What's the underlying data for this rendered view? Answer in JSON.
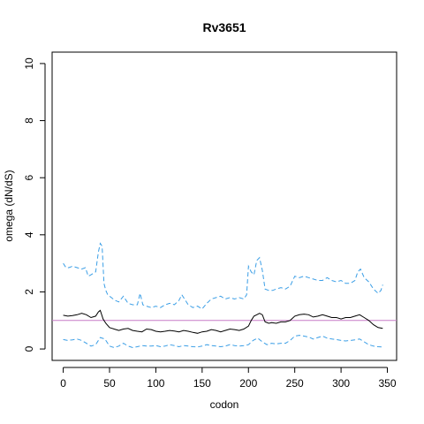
{
  "chart_data": {
    "type": "line",
    "title": "Rv3651",
    "xlabel": "codon",
    "ylabel": "omega (dN/dS)",
    "xlim": [
      -12,
      360
    ],
    "ylim": [
      -0.4,
      10.4
    ],
    "x_ticks": [
      0,
      50,
      100,
      150,
      200,
      250,
      300,
      350
    ],
    "y_ticks": [
      0,
      2,
      4,
      6,
      8,
      10
    ],
    "grid": false,
    "reference_line": {
      "y": 1,
      "color": "#c77cc7"
    },
    "series": [
      {
        "color": "#000000",
        "style": "solid",
        "x": [
          0,
          5,
          10,
          15,
          20,
          25,
          30,
          35,
          38,
          40,
          43,
          46,
          50,
          55,
          60,
          65,
          70,
          75,
          80,
          85,
          90,
          95,
          100,
          105,
          110,
          115,
          120,
          125,
          130,
          135,
          140,
          145,
          150,
          155,
          160,
          165,
          170,
          175,
          180,
          185,
          190,
          195,
          200,
          203,
          206,
          209,
          212,
          215,
          218,
          222,
          225,
          230,
          235,
          240,
          245,
          250,
          255,
          260,
          265,
          270,
          275,
          280,
          285,
          290,
          295,
          300,
          305,
          310,
          315,
          320,
          325,
          330,
          335,
          340,
          345
        ],
        "y": [
          1.18,
          1.15,
          1.17,
          1.2,
          1.25,
          1.2,
          1.1,
          1.15,
          1.3,
          1.35,
          1.05,
          0.9,
          0.75,
          0.7,
          0.65,
          0.7,
          0.72,
          0.65,
          0.62,
          0.6,
          0.7,
          0.68,
          0.62,
          0.6,
          0.62,
          0.65,
          0.63,
          0.6,
          0.65,
          0.62,
          0.58,
          0.55,
          0.6,
          0.62,
          0.68,
          0.65,
          0.6,
          0.65,
          0.7,
          0.68,
          0.65,
          0.7,
          0.8,
          1.0,
          1.15,
          1.2,
          1.25,
          1.2,
          0.95,
          0.9,
          0.92,
          0.9,
          0.95,
          0.95,
          1.0,
          1.15,
          1.2,
          1.22,
          1.2,
          1.12,
          1.15,
          1.2,
          1.15,
          1.1,
          1.1,
          1.05,
          1.1,
          1.1,
          1.15,
          1.2,
          1.1,
          1.0,
          0.85,
          0.75,
          0.72
        ]
      },
      {
        "color": "#3a9ee6",
        "style": "dashed",
        "x": [
          0,
          3,
          6,
          10,
          15,
          20,
          24,
          27,
          30,
          35,
          38,
          40,
          42,
          44,
          46,
          48,
          52,
          56,
          60,
          65,
          70,
          75,
          80,
          83,
          86,
          90,
          95,
          100,
          105,
          110,
          115,
          120,
          125,
          128,
          131,
          135,
          140,
          145,
          150,
          155,
          160,
          165,
          170,
          175,
          180,
          185,
          190,
          195,
          198,
          200,
          203,
          206,
          209,
          212,
          215,
          218,
          222,
          226,
          230,
          235,
          240,
          245,
          250,
          255,
          260,
          265,
          270,
          275,
          280,
          285,
          290,
          295,
          300,
          305,
          310,
          315,
          318,
          321,
          325,
          330,
          335,
          340,
          343,
          345
        ],
        "y": [
          3.0,
          2.85,
          2.85,
          2.9,
          2.85,
          2.8,
          2.85,
          2.55,
          2.6,
          2.7,
          3.4,
          3.7,
          3.6,
          2.3,
          2.05,
          1.9,
          1.8,
          1.7,
          1.65,
          1.85,
          1.6,
          1.55,
          1.55,
          1.95,
          1.55,
          1.5,
          1.45,
          1.5,
          1.45,
          1.55,
          1.6,
          1.55,
          1.7,
          1.9,
          1.75,
          1.55,
          1.45,
          1.5,
          1.4,
          1.6,
          1.75,
          1.8,
          1.85,
          1.75,
          1.8,
          1.75,
          1.8,
          1.75,
          1.9,
          2.9,
          2.7,
          2.6,
          3.1,
          3.2,
          2.75,
          2.1,
          2.05,
          2.05,
          2.1,
          2.15,
          2.1,
          2.2,
          2.55,
          2.5,
          2.55,
          2.5,
          2.45,
          2.4,
          2.4,
          2.5,
          2.4,
          2.35,
          2.4,
          2.3,
          2.3,
          2.4,
          2.7,
          2.8,
          2.5,
          2.35,
          2.1,
          1.95,
          2.05,
          2.25
        ]
      },
      {
        "color": "#3a9ee6",
        "style": "dashed",
        "x": [
          0,
          5,
          10,
          15,
          20,
          25,
          30,
          35,
          40,
          45,
          50,
          55,
          60,
          65,
          70,
          75,
          80,
          85,
          90,
          95,
          100,
          105,
          110,
          115,
          120,
          125,
          130,
          135,
          140,
          145,
          150,
          155,
          160,
          165,
          170,
          175,
          180,
          185,
          190,
          195,
          200,
          205,
          210,
          215,
          220,
          225,
          230,
          235,
          240,
          245,
          250,
          255,
          260,
          265,
          270,
          275,
          280,
          285,
          290,
          295,
          300,
          305,
          310,
          315,
          320,
          325,
          330,
          335,
          340,
          345
        ],
        "y": [
          0.33,
          0.3,
          0.32,
          0.35,
          0.3,
          0.2,
          0.1,
          0.15,
          0.4,
          0.35,
          0.1,
          0.05,
          0.1,
          0.2,
          0.1,
          0.05,
          0.08,
          0.12,
          0.1,
          0.1,
          0.12,
          0.08,
          0.1,
          0.15,
          0.12,
          0.08,
          0.12,
          0.1,
          0.08,
          0.07,
          0.1,
          0.15,
          0.12,
          0.1,
          0.08,
          0.1,
          0.15,
          0.12,
          0.1,
          0.12,
          0.15,
          0.3,
          0.38,
          0.25,
          0.15,
          0.2,
          0.18,
          0.2,
          0.2,
          0.3,
          0.45,
          0.48,
          0.45,
          0.42,
          0.35,
          0.4,
          0.45,
          0.38,
          0.35,
          0.33,
          0.3,
          0.28,
          0.3,
          0.32,
          0.35,
          0.25,
          0.15,
          0.1,
          0.08,
          0.07
        ]
      }
    ]
  }
}
